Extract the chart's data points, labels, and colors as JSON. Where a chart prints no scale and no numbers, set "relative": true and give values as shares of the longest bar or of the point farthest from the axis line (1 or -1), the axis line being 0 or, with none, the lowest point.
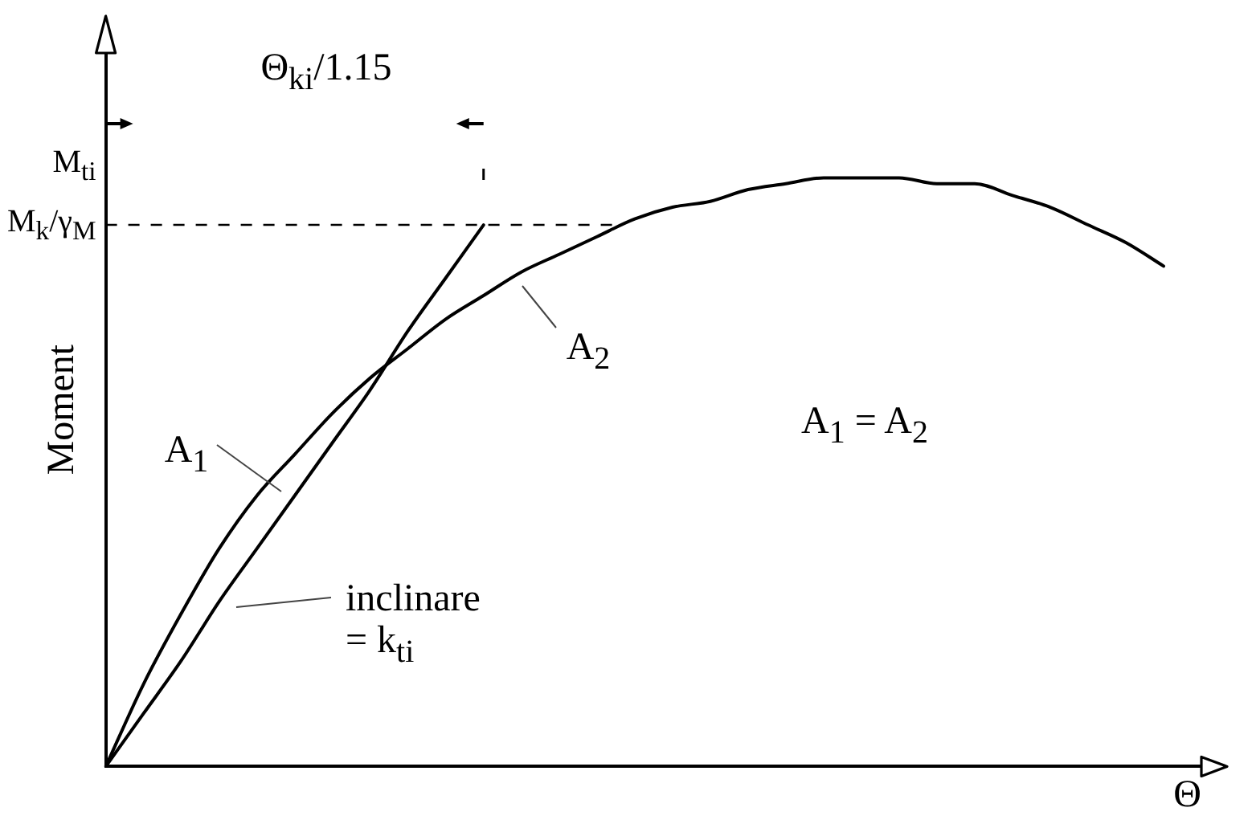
{
  "chart_data": {
    "type": "line",
    "xlabel": "Θ",
    "ylabel": "Moment",
    "relative": true,
    "categories": [
      null,
      null,
      null,
      null,
      null,
      null,
      null,
      null,
      null,
      null,
      null,
      null,
      null,
      null,
      null,
      null,
      null,
      null,
      null,
      null,
      null,
      null,
      null,
      null,
      null,
      null,
      null,
      null,
      null,
      null
    ],
    "series": [
      {
        "color": "#000000",
        "values": [
          0,
          0.14,
          0.26,
          0.37,
          0.46,
          0.53,
          0.6,
          0.66,
          0.71,
          0.76,
          0.8,
          0.84,
          0.87,
          0.9,
          0.93,
          0.95,
          0.96,
          0.98,
          0.99,
          1,
          1,
          1,
          0.99,
          0.99,
          0.97,
          0.95,
          0.92,
          0.89,
          0.85,
          null
        ]
      },
      {
        "color": "#000000",
        "values": [
          0,
          0.09,
          0.18,
          0.28,
          0.37,
          0.46,
          0.55,
          0.64,
          0.74,
          0.83,
          0.92,
          null,
          null,
          null,
          null,
          null,
          null,
          null,
          null,
          null,
          null,
          null,
          null,
          null,
          null,
          null,
          null,
          null,
          null,
          null
        ]
      }
    ],
    "ref_lines": [
      {
        "axis": "y",
        "value": 0.92,
        "label": "M$_{k}$/γ$_{M}$",
        "line_style": "dashed",
        "color": "#000000"
      }
    ],
    "annotations": [
      "M$_{ti}$",
      "A$_{1}$",
      "A$_{2}$",
      "inclinare = k$_{ti}$",
      "A$_{1}$ = A$_{2}$",
      "Θ$_{ki}$/1.15"
    ],
    "grid": false,
    "legend": false,
    "marker": "none"
  }
}
